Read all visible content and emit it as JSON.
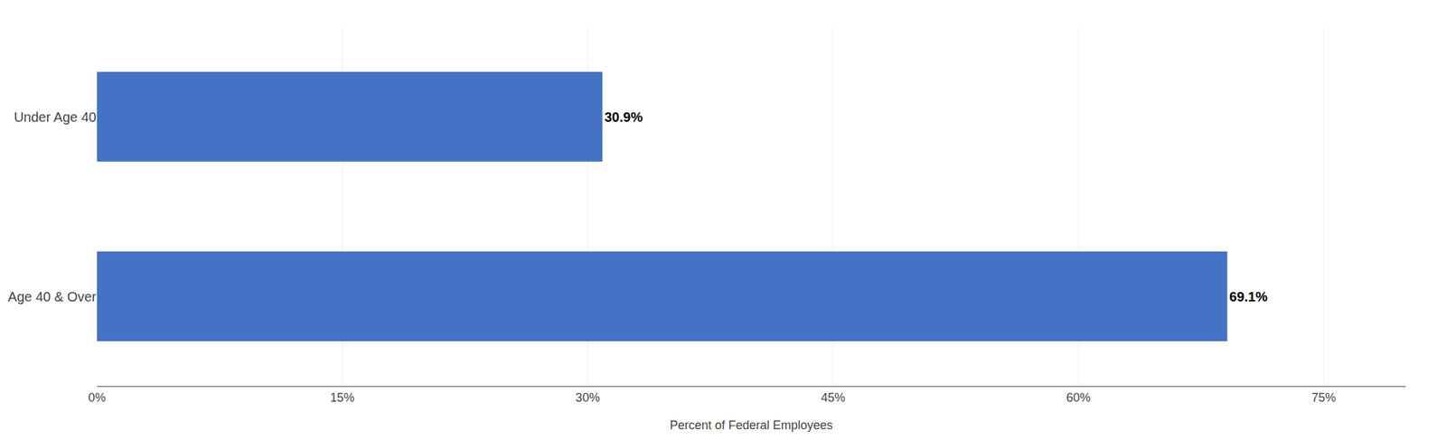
{
  "chart_data": {
    "type": "bar",
    "orientation": "horizontal",
    "categories": [
      "Under Age 40",
      "Age 40 & Over"
    ],
    "values": [
      30.9,
      69.1
    ],
    "value_labels": [
      "30.9%",
      "69.1%"
    ],
    "data_labels": true,
    "color": "#4472C4",
    "xlabel": "Percent of Federal Employees",
    "xlim": [
      0,
      80
    ],
    "xticks": [
      {
        "value": 0,
        "label": "0%"
      },
      {
        "value": 15,
        "label": "15%"
      },
      {
        "value": 30,
        "label": "30%"
      },
      {
        "value": 45,
        "label": "45%"
      },
      {
        "value": 60,
        "label": "60%"
      },
      {
        "value": 75,
        "label": "75%"
      }
    ],
    "grid": true
  }
}
